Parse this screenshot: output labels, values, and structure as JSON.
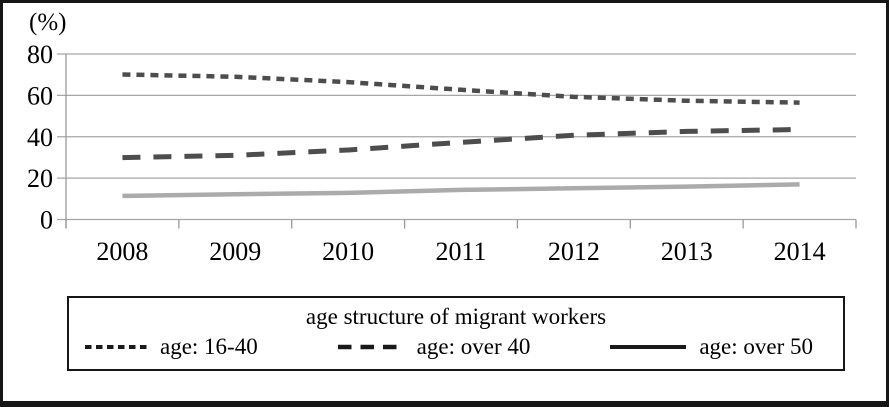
{
  "chart_data": {
    "type": "line",
    "title": "age structure of migrant workers",
    "y_axis_unit_label": "(%)",
    "x_categories": [
      "2008",
      "2009",
      "2010",
      "2011",
      "2012",
      "2013",
      "2014"
    ],
    "y_ticks": [
      0,
      20,
      40,
      60,
      80
    ],
    "ylim": [
      0,
      80
    ],
    "grid": true,
    "legend_position": "bottom-boxed",
    "series": [
      {
        "name": "age: 16-40",
        "line_style": "dotted",
        "color": "#4d4d4d",
        "values": [
          70.1,
          69.0,
          66.4,
          62.7,
          59.3,
          57.4,
          56.5
        ]
      },
      {
        "name": "age: over 40",
        "line_style": "dashed",
        "color": "#4d4d4d",
        "values": [
          29.9,
          31.0,
          33.6,
          37.3,
          40.7,
          42.6,
          43.5
        ]
      },
      {
        "name": "age: over 50",
        "line_style": "solid",
        "color": "#ababab",
        "values": [
          11.4,
          12.2,
          12.9,
          14.3,
          15.1,
          15.9,
          17.0
        ]
      }
    ],
    "colors": {
      "gridline": "#a6a6a6",
      "axis": "#9a9a9a",
      "tick_text": "#000000",
      "legend_sample": "#1a1a1a",
      "frame_border": "#161616"
    }
  }
}
